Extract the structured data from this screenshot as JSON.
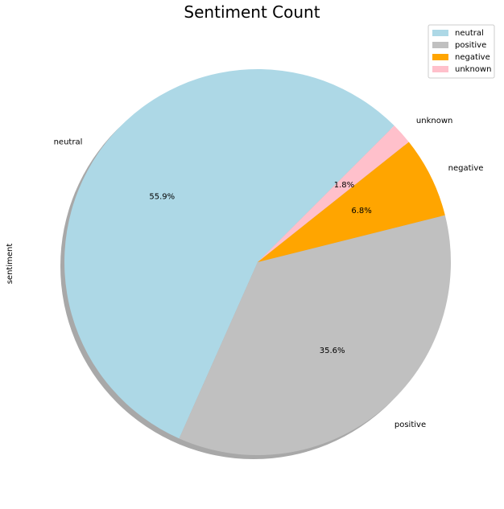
{
  "chart_data": {
    "type": "pie",
    "title": "Sentiment Count",
    "ylabel": "sentiment",
    "shadow": true,
    "legend_position": "top-right",
    "slices": [
      {
        "label": "neutral",
        "percent": 55.9,
        "percent_label": "55.9%",
        "color": "#add8e6"
      },
      {
        "label": "positive",
        "percent": 35.6,
        "percent_label": "35.6%",
        "color": "#c0c0c0"
      },
      {
        "label": "negative",
        "percent": 6.8,
        "percent_label": "6.8%",
        "color": "#ffa500"
      },
      {
        "label": "unknown",
        "percent": 1.8,
        "percent_label": "1.8%",
        "color": "#ffc0cb"
      }
    ],
    "legend": [
      "neutral",
      "positive",
      "negative",
      "unknown"
    ]
  }
}
